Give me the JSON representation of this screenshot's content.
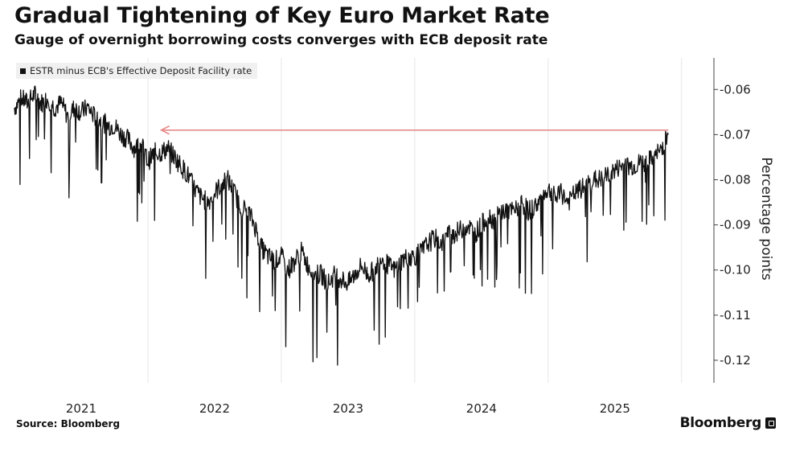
{
  "header": {
    "title": "Gradual Tightening of Key Euro Market Rate",
    "subtitle": "Gauge of overnight borrowing costs converges with ECB deposit rate"
  },
  "footer": {
    "source": "Source: Bloomberg",
    "brand": "Bloomberg"
  },
  "colors": {
    "line": "#111111",
    "arrow": "#e88a8a",
    "grid": "#e6e6e6",
    "axis": "#444444"
  },
  "chart_data": {
    "type": "line",
    "title": "Gradual Tightening of Key Euro Market Rate",
    "subtitle": "Gauge of overnight borrowing costs converges with ECB deposit rate",
    "ylabel": "Percentage points",
    "xlabel": "",
    "ylim": [
      -0.125,
      -0.053
    ],
    "y_inverted": true,
    "yticks": [
      -0.06,
      -0.07,
      -0.08,
      -0.09,
      -0.1,
      -0.11,
      -0.12
    ],
    "ytick_labels": [
      "-0.06",
      "-0.07",
      "-0.08",
      "-0.09",
      "-0.10",
      "-0.11",
      "-0.12"
    ],
    "xlim": [
      2020.5,
      2025.73
    ],
    "xticks": [
      2021,
      2022,
      2023,
      2024,
      2025
    ],
    "xtick_labels": [
      "2021",
      "2022",
      "2023",
      "2024",
      "2025"
    ],
    "legend": {
      "label": "ESTR minus ECB's Effective Deposit Facility rate",
      "position": "top-left"
    },
    "annotation": {
      "type": "arrow",
      "from": [
        2025.4,
        -0.069
      ],
      "to": [
        2021.6,
        -0.069
      ],
      "description": "horizontal reference arrow pointing back to 2021 level"
    },
    "series": [
      {
        "name": "ESTR minus ECB's Effective Deposit Facility rate",
        "x": [
          2020.5,
          2020.55,
          2020.6,
          2020.65,
          2020.7,
          2020.75,
          2020.8,
          2020.85,
          2020.9,
          2020.95,
          2021.0,
          2021.05,
          2021.1,
          2021.15,
          2021.2,
          2021.25,
          2021.3,
          2021.35,
          2021.4,
          2021.45,
          2021.5,
          2021.55,
          2021.6,
          2021.65,
          2021.7,
          2021.75,
          2021.8,
          2021.85,
          2021.9,
          2021.95,
          2022.0,
          2022.05,
          2022.1,
          2022.15,
          2022.2,
          2022.25,
          2022.3,
          2022.35,
          2022.4,
          2022.45,
          2022.5,
          2022.55,
          2022.6,
          2022.65,
          2022.7,
          2022.75,
          2022.8,
          2022.85,
          2022.9,
          2022.95,
          2023.0,
          2023.05,
          2023.1,
          2023.15,
          2023.2,
          2023.25,
          2023.3,
          2023.35,
          2023.4,
          2023.45,
          2023.5,
          2023.55,
          2023.6,
          2023.65,
          2023.7,
          2023.75,
          2023.8,
          2023.85,
          2023.9,
          2023.95,
          2024.0,
          2024.05,
          2024.1,
          2024.15,
          2024.2,
          2024.25,
          2024.3,
          2024.35,
          2024.4,
          2024.45,
          2024.5,
          2024.55,
          2024.6,
          2024.65,
          2024.7,
          2024.75,
          2024.8,
          2024.85,
          2024.9,
          2024.95,
          2025.0,
          2025.05,
          2025.1,
          2025.15,
          2025.2,
          2025.25,
          2025.3,
          2025.35,
          2025.4
        ],
        "values": [
          -0.064,
          -0.062,
          -0.063,
          -0.061,
          -0.063,
          -0.062,
          -0.064,
          -0.063,
          -0.066,
          -0.064,
          -0.065,
          -0.064,
          -0.066,
          -0.067,
          -0.068,
          -0.068,
          -0.07,
          -0.071,
          -0.073,
          -0.072,
          -0.076,
          -0.074,
          -0.074,
          -0.073,
          -0.075,
          -0.077,
          -0.079,
          -0.082,
          -0.084,
          -0.085,
          -0.083,
          -0.081,
          -0.08,
          -0.083,
          -0.086,
          -0.087,
          -0.09,
          -0.095,
          -0.097,
          -0.098,
          -0.097,
          -0.1,
          -0.098,
          -0.096,
          -0.099,
          -0.101,
          -0.101,
          -0.103,
          -0.101,
          -0.102,
          -0.103,
          -0.101,
          -0.099,
          -0.101,
          -0.1,
          -0.097,
          -0.099,
          -0.1,
          -0.098,
          -0.097,
          -0.097,
          -0.096,
          -0.094,
          -0.093,
          -0.094,
          -0.092,
          -0.092,
          -0.091,
          -0.09,
          -0.092,
          -0.09,
          -0.088,
          -0.089,
          -0.087,
          -0.087,
          -0.087,
          -0.085,
          -0.087,
          -0.086,
          -0.084,
          -0.082,
          -0.084,
          -0.083,
          -0.085,
          -0.083,
          -0.082,
          -0.081,
          -0.08,
          -0.08,
          -0.079,
          -0.078,
          -0.077,
          -0.077,
          -0.077,
          -0.076,
          -0.076,
          -0.075,
          -0.073,
          -0.07
        ]
      }
    ]
  }
}
